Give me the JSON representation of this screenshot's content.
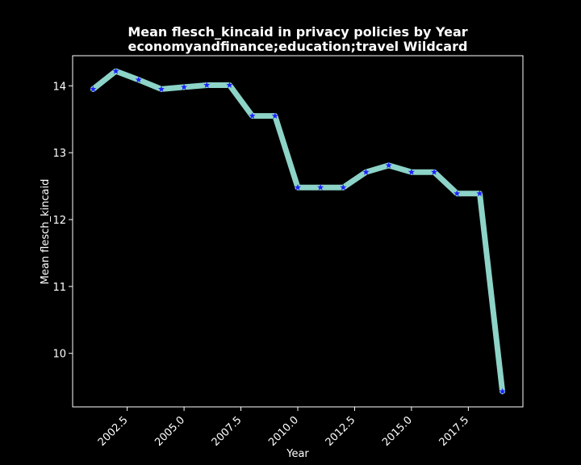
{
  "colors": {
    "background": "#000000",
    "line": "#8dd3c7",
    "marker": "#1f1fff",
    "axes": "#ffffff"
  },
  "chart_data": {
    "type": "line",
    "title_line1": "Mean flesch_kincaid in privacy policies by Year",
    "title_line2": "economyandfinance;education;travel Wildcard",
    "xlabel": "Year",
    "ylabel": "Mean flesch_kincaid",
    "xlim": [
      2000.1,
      2019.9
    ],
    "ylim": [
      9.2,
      14.45
    ],
    "xticks": [
      2002.5,
      2005.0,
      2007.5,
      2010.0,
      2012.5,
      2015.0,
      2017.5
    ],
    "xtick_labels": [
      "2002.5",
      "2005.0",
      "2007.5",
      "2010.0",
      "2012.5",
      "2015.0",
      "2017.5"
    ],
    "yticks": [
      10,
      11,
      12,
      13,
      14
    ],
    "ytick_labels": [
      "10",
      "11",
      "12",
      "13",
      "14"
    ],
    "grid": false,
    "marker": "star",
    "x": [
      2001,
      2002,
      2003,
      2004,
      2005,
      2006,
      2007,
      2008,
      2009,
      2010,
      2011,
      2012,
      2013,
      2014,
      2015,
      2016,
      2017,
      2018,
      2019
    ],
    "y": [
      13.95,
      14.22,
      14.09,
      13.95,
      13.98,
      14.01,
      14.01,
      13.55,
      13.55,
      12.48,
      12.48,
      12.48,
      12.71,
      12.81,
      12.71,
      12.71,
      12.39,
      12.39,
      9.43
    ]
  }
}
